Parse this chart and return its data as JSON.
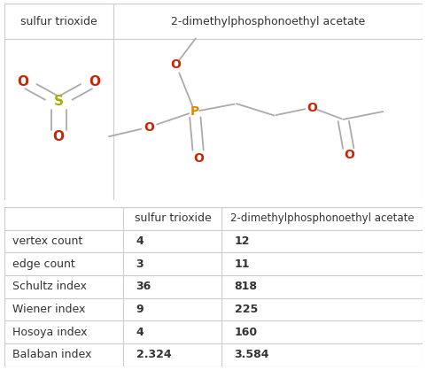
{
  "title1": "sulfur trioxide",
  "title2": "2-dimethylphosphonoethyl acetate",
  "col_header_empty": "",
  "col_header1": "sulfur trioxide",
  "col_header2": "2-dimethylphosphonoethyl acetate",
  "rows": [
    {
      "label": "vertex count",
      "v1": "4",
      "v2": "12"
    },
    {
      "label": "edge count",
      "v1": "3",
      "v2": "11"
    },
    {
      "label": "Schultz index",
      "v1": "36",
      "v2": "818"
    },
    {
      "label": "Wiener index",
      "v1": "9",
      "v2": "225"
    },
    {
      "label": "Hosoya index",
      "v1": "4",
      "v2": "160"
    },
    {
      "label": "Balaban index",
      "v1": "2.324",
      "v2": "3.584"
    }
  ],
  "border_color": "#cccccc",
  "text_color": "#333333",
  "bg_color": "#ffffff",
  "atom_O_color": "#cc2200",
  "atom_S_color": "#aaaa00",
  "atom_P_color": "#dd8800",
  "bond_color": "#aaaaaa",
  "font_size_title": 9,
  "font_size_atom": 10,
  "font_size_table": 9
}
